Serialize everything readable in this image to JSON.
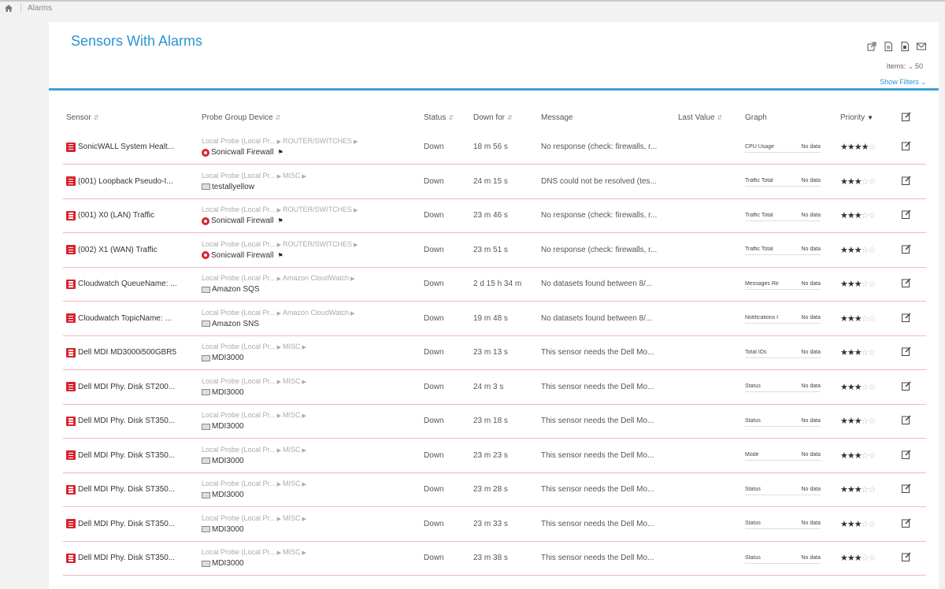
{
  "breadcrumb": {
    "home_icon": "home-icon",
    "current": "Alarms"
  },
  "panel": {
    "title": "Sensors With Alarms",
    "icons": [
      "external-link-icon",
      "pdf-icon",
      "csv-icon",
      "mail-icon"
    ],
    "items_label": "Items:",
    "items_value": "50",
    "show_filters": "Show Filters"
  },
  "columns": {
    "sensor": "Sensor",
    "probe": "Probe Group Device",
    "status": "Status",
    "down_for": "Down for",
    "message": "Message",
    "last_value": "Last Value",
    "graph": "Graph",
    "priority": "Priority"
  },
  "accent_color": "#2a95cf",
  "alarm_color": "#d9232d",
  "rows": [
    {
      "sensor": "SonicWALL System Healt...",
      "probe": "Local Probe (Local Pr...",
      "group": "ROUTER/SWITCHES",
      "device": "Sonicwall Firewall",
      "device_icon": "firewall-icon",
      "status": "Down",
      "down_for": "18 m 56 s",
      "message": "No response (check: firewalls, r...",
      "last_value": "",
      "graph_label": "CPU Usage",
      "graph_value": "No data",
      "priority": 4
    },
    {
      "sensor": "(001) Loopback Pseudo-I...",
      "probe": "Local Probe (Local Pr...",
      "group": "MISC",
      "device": "testallyellow",
      "device_icon": "server-icon",
      "status": "Down",
      "down_for": "24 m 15 s",
      "message": "DNS could not be resolved (tes...",
      "last_value": "",
      "graph_label": "Traffic Total",
      "graph_value": "No data",
      "priority": 3
    },
    {
      "sensor": "(001) X0 (LAN) Traffic",
      "probe": "Local Probe (Local Pr...",
      "group": "ROUTER/SWITCHES",
      "device": "Sonicwall Firewall",
      "device_icon": "firewall-icon",
      "status": "Down",
      "down_for": "23 m 46 s",
      "message": "No response (check: firewalls, r...",
      "last_value": "",
      "graph_label": "Traffic Total",
      "graph_value": "No data",
      "priority": 3
    },
    {
      "sensor": "(002) X1 (WAN) Traffic",
      "probe": "Local Probe (Local Pr...",
      "group": "ROUTER/SWITCHES",
      "device": "Sonicwall Firewall",
      "device_icon": "firewall-icon",
      "status": "Down",
      "down_for": "23 m 51 s",
      "message": "No response (check: firewalls, r...",
      "last_value": "",
      "graph_label": "Traffic Total",
      "graph_value": "No data",
      "priority": 3
    },
    {
      "sensor": "Cloudwatch QueueName: ...",
      "probe": "Local Probe (Local Pr...",
      "group": "Amazon CloudWatch",
      "device": "Amazon SQS",
      "device_icon": "server-icon",
      "status": "Down",
      "down_for": "2 d 15 h 34 m",
      "message": "No datasets found between 8/...",
      "last_value": "",
      "graph_label": "Messages Re",
      "graph_value": "No data",
      "priority": 3
    },
    {
      "sensor": "Cloudwatch TopicName: ...",
      "probe": "Local Probe (Local Pr...",
      "group": "Amazon CloudWatch",
      "device": "Amazon SNS",
      "device_icon": "server-icon",
      "status": "Down",
      "down_for": "19 m 48 s",
      "message": "No datasets found between 8/...",
      "last_value": "",
      "graph_label": "Notifications I",
      "graph_value": "No data",
      "priority": 3
    },
    {
      "sensor": "Dell MDI MD3000i500GBR5",
      "probe": "Local Probe (Local Pr...",
      "group": "MISC",
      "device": "MDI3000",
      "device_icon": "server-icon",
      "status": "Down",
      "down_for": "23 m 13 s",
      "message": "This sensor needs the Dell Mo...",
      "last_value": "",
      "graph_label": "Total IOs",
      "graph_value": "No data",
      "priority": 3
    },
    {
      "sensor": "Dell MDI Phy. Disk ST200...",
      "probe": "Local Probe (Local Pr...",
      "group": "MISC",
      "device": "MDI3000",
      "device_icon": "server-icon",
      "status": "Down",
      "down_for": "24 m 3 s",
      "message": "This sensor needs the Dell Mo...",
      "last_value": "",
      "graph_label": "Status",
      "graph_value": "No data",
      "priority": 3
    },
    {
      "sensor": "Dell MDI Phy. Disk ST350...",
      "probe": "Local Probe (Local Pr...",
      "group": "MISC",
      "device": "MDI3000",
      "device_icon": "server-icon",
      "status": "Down",
      "down_for": "23 m 18 s",
      "message": "This sensor needs the Dell Mo...",
      "last_value": "",
      "graph_label": "Status",
      "graph_value": "No data",
      "priority": 3
    },
    {
      "sensor": "Dell MDI Phy. Disk ST350...",
      "probe": "Local Probe (Local Pr...",
      "group": "MISC",
      "device": "MDI3000",
      "device_icon": "server-icon",
      "status": "Down",
      "down_for": "23 m 23 s",
      "message": "This sensor needs the Dell Mo...",
      "last_value": "",
      "graph_label": "Mode",
      "graph_value": "No data",
      "priority": 3
    },
    {
      "sensor": "Dell MDI Phy. Disk ST350...",
      "probe": "Local Probe (Local Pr...",
      "group": "MISC",
      "device": "MDI3000",
      "device_icon": "server-icon",
      "status": "Down",
      "down_for": "23 m 28 s",
      "message": "This sensor needs the Dell Mo...",
      "last_value": "",
      "graph_label": "Status",
      "graph_value": "No data",
      "priority": 3
    },
    {
      "sensor": "Dell MDI Phy. Disk ST350...",
      "probe": "Local Probe (Local Pr...",
      "group": "MISC",
      "device": "MDI3000",
      "device_icon": "server-icon",
      "status": "Down",
      "down_for": "23 m 33 s",
      "message": "This sensor needs the Dell Mo...",
      "last_value": "",
      "graph_label": "Status",
      "graph_value": "No data",
      "priority": 3
    },
    {
      "sensor": "Dell MDI Phy. Disk ST350...",
      "probe": "Local Probe (Local Pr...",
      "group": "MISC",
      "device": "MDI3000",
      "device_icon": "server-icon",
      "status": "Down",
      "down_for": "23 m 38 s",
      "message": "This sensor needs the Dell Mo...",
      "last_value": "",
      "graph_label": "Status",
      "graph_value": "No data",
      "priority": 3
    }
  ]
}
